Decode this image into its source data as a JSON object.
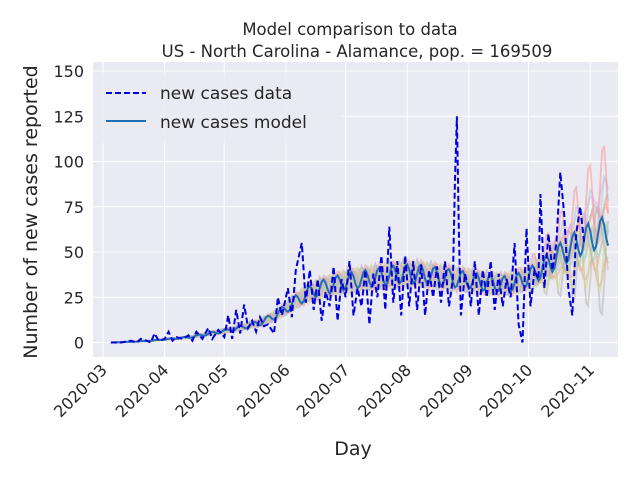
{
  "chart_data": {
    "type": "line",
    "title": "Model comparison to data",
    "subtitle": "US - North Carolina - Alamance, pop. = 169509",
    "xlabel": "Day",
    "ylabel": "Number of new cases reported",
    "x_range": [
      "2020-02-25",
      "2020-11-15"
    ],
    "ylim": [
      -8,
      155
    ],
    "x_ticks": [
      "2020-03-01",
      "2020-04-01",
      "2020-05-01",
      "2020-06-01",
      "2020-07-01",
      "2020-08-01",
      "2020-09-01",
      "2020-10-01",
      "2020-11-01"
    ],
    "x_tick_labels": [
      "2020-03",
      "2020-04",
      "2020-05",
      "2020-06",
      "2020-07",
      "2020-08",
      "2020-09",
      "2020-10",
      "2020-11"
    ],
    "y_ticks": [
      0,
      25,
      50,
      75,
      100,
      125,
      150
    ],
    "y_tick_labels": [
      "0",
      "25",
      "50",
      "75",
      "100",
      "125",
      "150"
    ],
    "grid": true,
    "legend_position": "top-left",
    "series": [
      {
        "name": "new cases data",
        "style": "dashed",
        "color": "#0000dd",
        "points": [
          [
            "2020-03-05",
            0
          ],
          [
            "2020-03-10",
            0
          ],
          [
            "2020-03-15",
            1
          ],
          [
            "2020-03-18",
            0
          ],
          [
            "2020-03-20",
            2
          ],
          [
            "2020-03-23",
            1
          ],
          [
            "2020-03-25",
            0
          ],
          [
            "2020-03-27",
            5
          ],
          [
            "2020-03-29",
            1
          ],
          [
            "2020-04-01",
            2
          ],
          [
            "2020-04-03",
            6
          ],
          [
            "2020-04-05",
            1
          ],
          [
            "2020-04-07",
            3
          ],
          [
            "2020-04-10",
            2
          ],
          [
            "2020-04-13",
            4
          ],
          [
            "2020-04-15",
            1
          ],
          [
            "2020-04-17",
            6
          ],
          [
            "2020-04-20",
            2
          ],
          [
            "2020-04-23",
            8
          ],
          [
            "2020-04-25",
            2
          ],
          [
            "2020-04-28",
            7
          ],
          [
            "2020-05-01",
            3
          ],
          [
            "2020-05-03",
            15
          ],
          [
            "2020-05-05",
            2
          ],
          [
            "2020-05-07",
            18
          ],
          [
            "2020-05-09",
            5
          ],
          [
            "2020-05-11",
            21
          ],
          [
            "2020-05-13",
            8
          ],
          [
            "2020-05-15",
            12
          ],
          [
            "2020-05-17",
            6
          ],
          [
            "2020-05-19",
            14
          ],
          [
            "2020-05-21",
            9
          ],
          [
            "2020-05-23",
            10
          ],
          [
            "2020-05-26",
            5
          ],
          [
            "2020-05-28",
            25
          ],
          [
            "2020-05-30",
            15
          ],
          [
            "2020-06-02",
            30
          ],
          [
            "2020-06-04",
            14
          ],
          [
            "2020-06-06",
            40
          ],
          [
            "2020-06-08",
            50
          ],
          [
            "2020-06-09",
            55
          ],
          [
            "2020-06-11",
            22
          ],
          [
            "2020-06-13",
            40
          ],
          [
            "2020-06-15",
            18
          ],
          [
            "2020-06-17",
            35
          ],
          [
            "2020-06-19",
            12
          ],
          [
            "2020-06-21",
            28
          ],
          [
            "2020-06-23",
            20
          ],
          [
            "2020-06-25",
            42
          ],
          [
            "2020-06-27",
            12
          ],
          [
            "2020-06-29",
            35
          ],
          [
            "2020-07-01",
            25
          ],
          [
            "2020-07-03",
            45
          ],
          [
            "2020-07-05",
            15
          ],
          [
            "2020-07-07",
            30
          ],
          [
            "2020-07-09",
            20
          ],
          [
            "2020-07-11",
            40
          ],
          [
            "2020-07-13",
            10
          ],
          [
            "2020-07-15",
            38
          ],
          [
            "2020-07-17",
            25
          ],
          [
            "2020-07-19",
            48
          ],
          [
            "2020-07-21",
            18
          ],
          [
            "2020-07-23",
            64
          ],
          [
            "2020-07-25",
            22
          ],
          [
            "2020-07-27",
            45
          ],
          [
            "2020-07-29",
            15
          ],
          [
            "2020-07-31",
            48
          ],
          [
            "2020-08-02",
            20
          ],
          [
            "2020-08-04",
            45
          ],
          [
            "2020-08-06",
            18
          ],
          [
            "2020-08-08",
            43
          ],
          [
            "2020-08-10",
            15
          ],
          [
            "2020-08-12",
            40
          ],
          [
            "2020-08-14",
            25
          ],
          [
            "2020-08-16",
            42
          ],
          [
            "2020-08-18",
            22
          ],
          [
            "2020-08-20",
            45
          ],
          [
            "2020-08-22",
            20
          ],
          [
            "2020-08-24",
            35
          ],
          [
            "2020-08-25",
            88
          ],
          [
            "2020-08-26",
            125
          ],
          [
            "2020-08-27",
            60
          ],
          [
            "2020-08-28",
            15
          ],
          [
            "2020-08-30",
            38
          ],
          [
            "2020-09-01",
            30
          ],
          [
            "2020-09-02",
            20
          ],
          [
            "2020-09-04",
            45
          ],
          [
            "2020-09-06",
            15
          ],
          [
            "2020-09-08",
            40
          ],
          [
            "2020-09-10",
            25
          ],
          [
            "2020-09-12",
            45
          ],
          [
            "2020-09-14",
            18
          ],
          [
            "2020-09-16",
            38
          ],
          [
            "2020-09-18",
            20
          ],
          [
            "2020-09-20",
            35
          ],
          [
            "2020-09-22",
            25
          ],
          [
            "2020-09-24",
            55
          ],
          [
            "2020-09-26",
            10
          ],
          [
            "2020-09-28",
            0
          ],
          [
            "2020-09-30",
            63
          ],
          [
            "2020-10-02",
            20
          ],
          [
            "2020-10-04",
            40
          ],
          [
            "2020-10-06",
            35
          ],
          [
            "2020-10-07",
            82
          ],
          [
            "2020-10-09",
            30
          ],
          [
            "2020-10-11",
            60
          ],
          [
            "2020-10-13",
            40
          ],
          [
            "2020-10-15",
            55
          ],
          [
            "2020-10-17",
            94
          ],
          [
            "2020-10-19",
            70
          ],
          [
            "2020-10-21",
            30
          ],
          [
            "2020-10-23",
            15
          ],
          [
            "2020-10-25",
            60
          ],
          [
            "2020-10-27",
            75
          ],
          [
            "2020-10-29",
            55
          ]
        ]
      },
      {
        "name": "new cases model",
        "style": "solid",
        "color": "#1f6fb4",
        "points": [
          [
            "2020-03-05",
            0
          ],
          [
            "2020-03-15",
            0.4
          ],
          [
            "2020-03-25",
            1
          ],
          [
            "2020-04-04",
            2
          ],
          [
            "2020-04-14",
            3
          ],
          [
            "2020-04-24",
            5
          ],
          [
            "2020-05-04",
            7
          ],
          [
            "2020-05-12",
            9
          ],
          [
            "2020-05-19",
            11
          ],
          [
            "2020-05-25",
            14
          ],
          [
            "2020-05-31",
            18
          ],
          [
            "2020-06-06",
            23
          ],
          [
            "2020-06-12",
            27
          ],
          [
            "2020-06-18",
            30
          ],
          [
            "2020-06-25",
            32
          ],
          [
            "2020-07-02",
            34
          ],
          [
            "2020-07-09",
            35
          ],
          [
            "2020-07-16",
            36
          ],
          [
            "2020-07-23",
            37
          ],
          [
            "2020-07-30",
            38
          ],
          [
            "2020-08-06",
            38
          ],
          [
            "2020-08-13",
            37
          ],
          [
            "2020-08-20",
            36
          ],
          [
            "2020-08-27",
            35
          ],
          [
            "2020-09-03",
            34
          ],
          [
            "2020-09-10",
            33
          ],
          [
            "2020-09-17",
            32
          ],
          [
            "2020-09-24",
            33
          ],
          [
            "2020-10-01",
            36
          ],
          [
            "2020-10-08",
            41
          ],
          [
            "2020-10-15",
            47
          ],
          [
            "2020-10-22",
            52
          ],
          [
            "2020-10-29",
            57
          ],
          [
            "2020-11-05",
            60
          ],
          [
            "2020-11-10",
            62
          ]
        ]
      }
    ],
    "ensemble_colors": [
      "#e6a0a0",
      "#f2b279",
      "#9fd09a",
      "#b9a5d6",
      "#c9a38f",
      "#f0b3d9",
      "#b8b8b8",
      "#d8d88c",
      "#8fd8e0",
      "#f4a582",
      "#a6cee3",
      "#fb9a99"
    ]
  }
}
